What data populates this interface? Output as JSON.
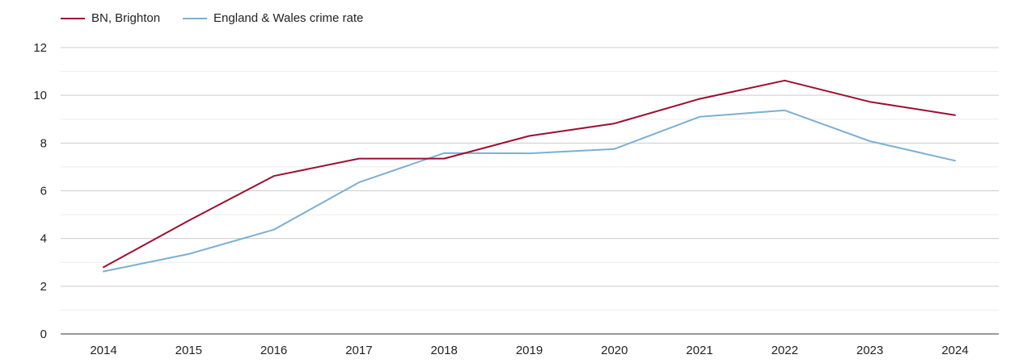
{
  "chart_data": {
    "type": "line",
    "categories": [
      "2014",
      "2015",
      "2016",
      "2017",
      "2018",
      "2019",
      "2020",
      "2021",
      "2022",
      "2023",
      "2024"
    ],
    "series": [
      {
        "name": "BN, Brighton",
        "color": "#9b0f31",
        "values": [
          2.8,
          4.75,
          6.62,
          7.35,
          7.35,
          8.3,
          8.82,
          9.85,
          10.62,
          9.73,
          9.17
        ]
      },
      {
        "name": "England & Wales crime rate",
        "color": "#7bafd4",
        "values": [
          2.62,
          3.35,
          4.37,
          6.35,
          7.58,
          7.57,
          7.75,
          9.1,
          9.37,
          8.08,
          7.26
        ]
      }
    ],
    "yticks": [
      "0",
      "2",
      "4",
      "6",
      "8",
      "10",
      "12"
    ],
    "ylim": [
      0,
      12
    ],
    "grid": true,
    "legend_position": "top-left"
  }
}
